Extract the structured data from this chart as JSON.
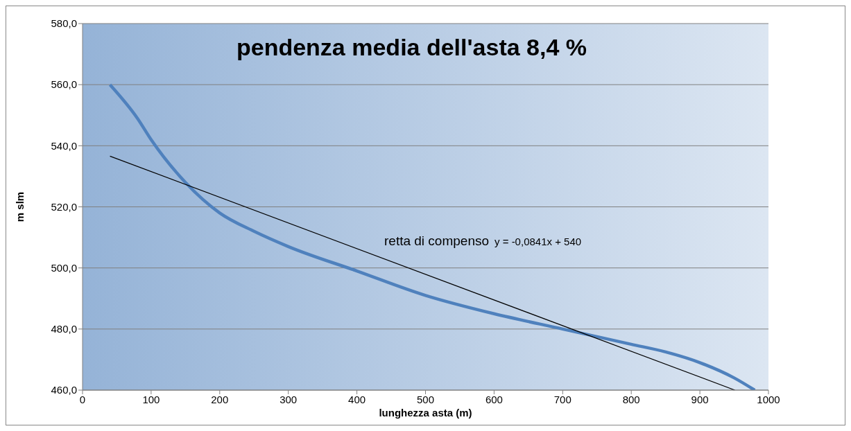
{
  "chart_data": {
    "type": "line",
    "title": "pendenza media dell'asta 8,4 %",
    "xlabel": "lunghezza asta (m)",
    "ylabel": "m slm",
    "xlim": [
      0,
      1000
    ],
    "xticks": [
      0,
      100,
      200,
      300,
      400,
      500,
      600,
      700,
      800,
      900,
      1000
    ],
    "ylim": [
      460,
      580
    ],
    "yticks": [
      {
        "value": 460,
        "label": "460,0"
      },
      {
        "value": 480,
        "label": "480,0"
      },
      {
        "value": 500,
        "label": "500,0"
      },
      {
        "value": 520,
        "label": "520,0"
      },
      {
        "value": 540,
        "label": "540,0"
      },
      {
        "value": 560,
        "label": "560,0"
      },
      {
        "value": 580,
        "label": "580,0"
      }
    ],
    "grid": "y",
    "marker": "none",
    "line_style": "solid",
    "series": [
      {
        "color": "#4f81bd",
        "x": [
          40,
          80,
          100,
          150,
          200,
          250,
          300,
          400,
          500,
          600,
          700,
          800,
          850,
          900,
          950,
          980
        ],
        "values": [
          560,
          549,
          542,
          528,
          518,
          512,
          507,
          499,
          491,
          485,
          480,
          475,
          472.5,
          469,
          464,
          460
        ]
      },
      {
        "type": "line",
        "color": "#000000",
        "x": [
          40,
          951
        ],
        "values": [
          536.6,
          460.0
        ]
      }
    ],
    "annotations": [
      "retta di compenso",
      "y = -0,0841x + 540"
    ]
  }
}
